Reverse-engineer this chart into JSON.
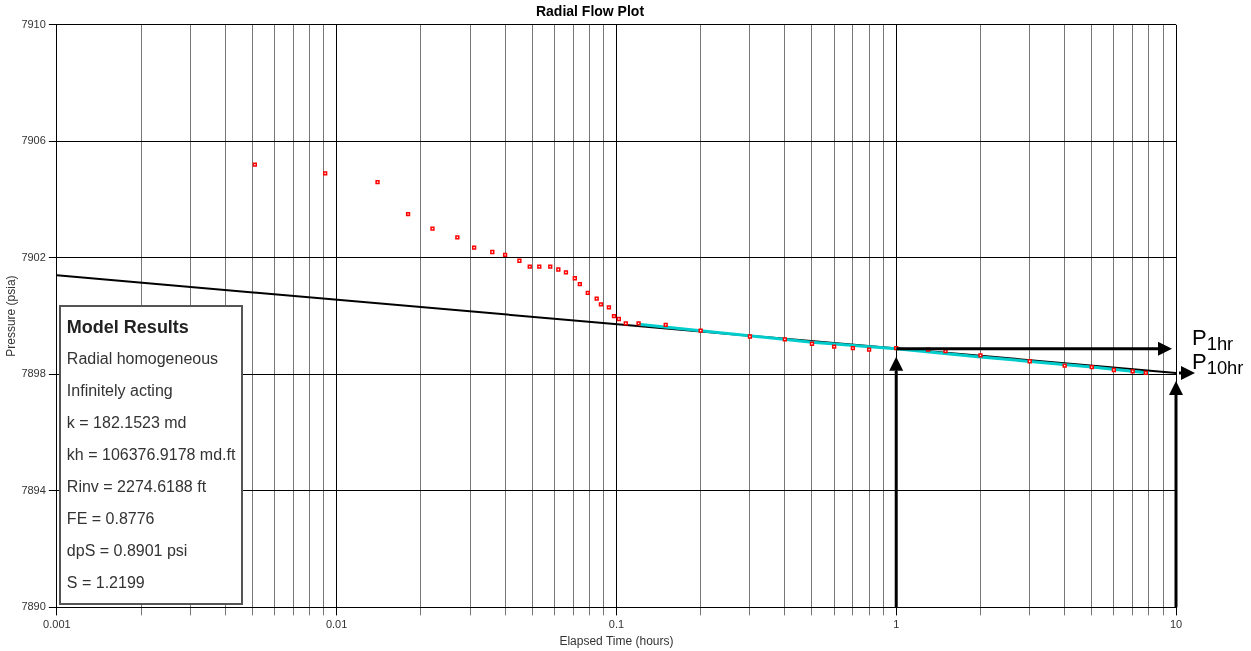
{
  "chart_data": {
    "type": "scatter",
    "title": "Radial Flow Plot",
    "xlabel": "Elapsed Time (hours)",
    "ylabel": "Pressure (psia)",
    "log": "x",
    "grid": true,
    "legend": false,
    "ref_lines": [
      {
        "axis": "x",
        "value": 1
      },
      {
        "axis": "x",
        "value": 10
      },
      {
        "axis": "y",
        "value": 7898.88,
        "label": "P$_{1hr}$"
      },
      {
        "axis": "y",
        "value": 7898.05,
        "label": "P$_{10hr}$"
      }
    ],
    "xlim": [
      0.001,
      10
    ],
    "xticks": [
      0.001,
      {
        "value": 0.002,
        "label": null
      },
      {
        "value": 0.003,
        "label": null
      },
      {
        "value": 0.004,
        "label": null
      },
      {
        "value": 0.005,
        "label": null
      },
      {
        "value": 0.006,
        "label": null
      },
      {
        "value": 0.007,
        "label": null
      },
      {
        "value": 0.008,
        "label": null
      },
      {
        "value": 0.009,
        "label": null
      },
      0.01,
      {
        "value": 0.02,
        "label": null
      },
      {
        "value": 0.03,
        "label": null
      },
      {
        "value": 0.04,
        "label": null
      },
      {
        "value": 0.05,
        "label": null
      },
      {
        "value": 0.06,
        "label": null
      },
      {
        "value": 0.07,
        "label": null
      },
      {
        "value": 0.08,
        "label": null
      },
      {
        "value": 0.09,
        "label": null
      },
      0.1,
      {
        "value": 0.2,
        "label": null
      },
      {
        "value": 0.3,
        "label": null
      },
      {
        "value": 0.4,
        "label": null
      },
      {
        "value": 0.5,
        "label": null
      },
      {
        "value": 0.6,
        "label": null
      },
      {
        "value": 0.7,
        "label": null
      },
      {
        "value": 0.8,
        "label": null
      },
      {
        "value": 0.9,
        "label": null
      },
      1,
      {
        "value": 2,
        "label": null
      },
      {
        "value": 3,
        "label": null
      },
      {
        "value": 4,
        "label": null
      },
      {
        "value": 5,
        "label": null
      },
      {
        "value": 6,
        "label": null
      },
      {
        "value": 7,
        "label": null
      },
      {
        "value": 8,
        "label": null
      },
      {
        "value": 9,
        "label": null
      },
      10
    ],
    "ylim": [
      7890,
      7910
    ],
    "yticks": [
      7890,
      7894,
      7898,
      7902,
      7906,
      7910
    ],
    "series": [
      {
        "type": "line",
        "marker": "none",
        "color": "#000000",
        "x": [
          0.001,
          10
        ],
        "values": [
          7901.4,
          7898.05
        ]
      },
      {
        "type": "scatter",
        "marker": "square",
        "color": "#ff0000",
        "x": [
          0.0051,
          0.0091,
          0.014,
          0.018,
          0.022,
          0.027,
          0.031,
          0.036,
          0.04,
          0.045,
          0.049,
          0.053,
          0.058,
          0.062,
          0.066,
          0.071,
          0.074,
          0.079,
          0.085,
          0.088,
          0.094,
          0.098,
          0.102,
          0.108,
          0.12,
          0.15,
          0.2,
          0.3,
          0.4,
          0.5,
          0.6,
          0.7,
          0.8,
          1,
          1.3,
          1.5,
          2,
          3,
          4,
          5,
          6,
          7,
          7.8
        ],
        "values": [
          7905.2,
          7904.9,
          7904.6,
          7903.5,
          7903.0,
          7902.7,
          7902.35,
          7902.2,
          7902.1,
          7901.9,
          7901.7,
          7901.7,
          7901.7,
          7901.6,
          7901.5,
          7901.3,
          7901.1,
          7900.8,
          7900.6,
          7900.4,
          7900.3,
          7900.0,
          7899.9,
          7899.75,
          7899.75,
          7899.7,
          7899.5,
          7899.3,
          7899.2,
          7899.05,
          7898.95,
          7898.9,
          7898.85,
          7898.9,
          7898.85,
          7898.8,
          7898.65,
          7898.45,
          7898.3,
          7898.25,
          7898.15,
          7898.1,
          7898.05
        ]
      },
      {
        "type": "line",
        "marker": "none",
        "color": "#00cccc",
        "x": [
          0.12,
          0.2,
          0.5,
          1,
          2,
          5,
          8
        ],
        "values": [
          7899.72,
          7899.5,
          7899.1,
          7898.88,
          7898.6,
          7898.25,
          7898.05
        ]
      }
    ],
    "annotations": [
      "Model Results",
      "Radial homogeneous",
      "Infinitely acting",
      "k = 182.1523 md",
      "kh = 106376.9178 md.ft",
      "Rinv = 2274.6188 ft",
      "FE = 0.8776",
      "dpS = 0.8901 psi",
      "S = 1.2199"
    ]
  }
}
